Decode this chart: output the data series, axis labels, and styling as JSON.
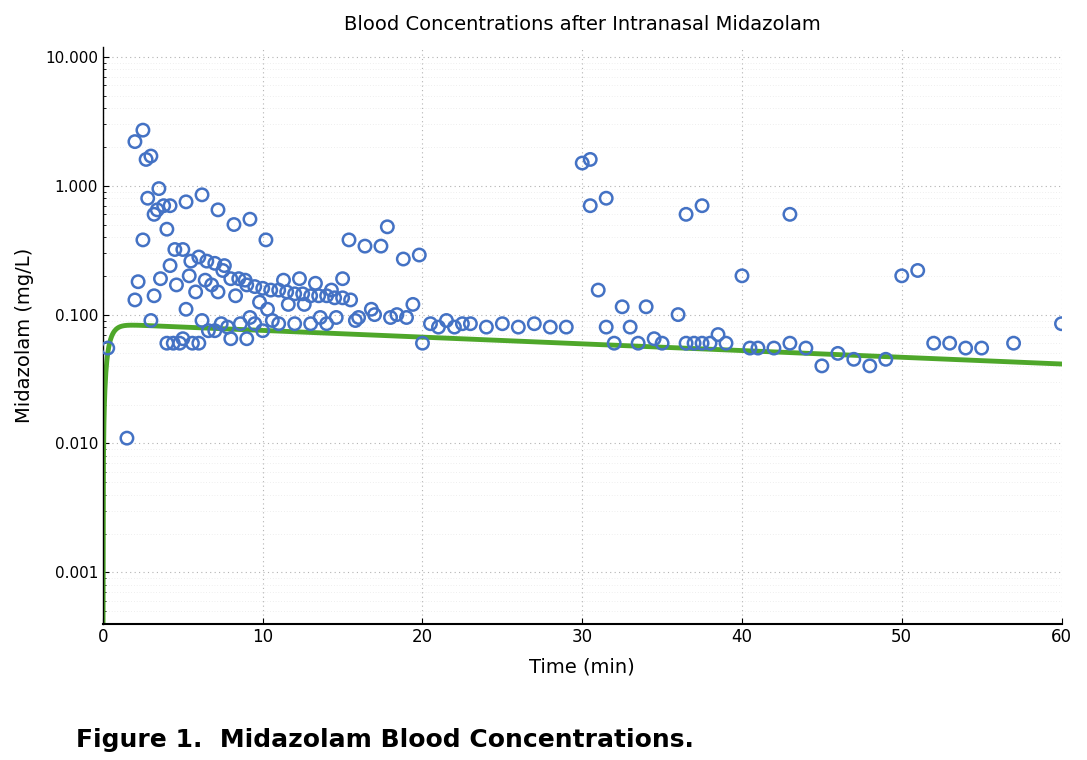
{
  "title": "Blood Concentrations after Intranasal Midazolam",
  "xlabel": "Time (min)",
  "ylabel": "Midazolam (mg/L)",
  "figure_caption": "Figure 1.  Midazolam Blood Concentrations.",
  "xlim": [
    0,
    60
  ],
  "ylim_log": [
    0.0004,
    12
  ],
  "yticks": [
    0.001,
    0.01,
    0.1,
    1.0,
    10.0
  ],
  "ytick_labels": [
    "0.001",
    "0.010",
    "0.100",
    "1.000",
    "10.000"
  ],
  "xticks": [
    0,
    10,
    20,
    30,
    40,
    50,
    60
  ],
  "scatter_color": "#4472C4",
  "scatter_facecolor": "none",
  "scatter_size": 80,
  "scatter_linewidth": 1.8,
  "line_color": "#4EA72A",
  "line_width": 3.5,
  "background_color": "#FFFFFF",
  "pk_A": 0.085,
  "pk_ka": 3.0,
  "pk_ke": 0.012,
  "scatter_x": [
    0.3,
    1.5,
    2.0,
    2.2,
    2.5,
    2.7,
    3.0,
    3.2,
    3.4,
    3.6,
    3.8,
    4.0,
    4.2,
    4.4,
    4.6,
    4.8,
    5.0,
    5.2,
    5.4,
    5.6,
    5.8,
    6.0,
    6.2,
    6.4,
    6.6,
    6.8,
    7.0,
    7.2,
    7.4,
    7.6,
    7.8,
    8.0,
    8.3,
    8.6,
    8.9,
    9.0,
    9.2,
    9.5,
    9.8,
    10.0,
    10.3,
    10.6,
    11.0,
    11.3,
    11.6,
    12.0,
    12.3,
    12.6,
    13.0,
    13.3,
    13.6,
    14.0,
    14.3,
    14.6,
    15.0,
    15.4,
    15.8,
    16.0,
    16.4,
    16.8,
    17.0,
    17.4,
    17.8,
    18.0,
    18.4,
    18.8,
    19.0,
    19.4,
    19.8,
    20.0,
    20.5,
    21.0,
    21.5,
    22.0,
    22.5,
    23.0,
    24.0,
    25.0,
    26.0,
    27.0,
    28.0,
    29.0,
    30.0,
    30.5,
    31.0,
    31.5,
    32.0,
    32.5,
    33.0,
    33.5,
    34.0,
    34.5,
    35.0,
    36.0,
    36.5,
    37.0,
    37.5,
    38.0,
    38.5,
    39.0,
    40.0,
    40.5,
    41.0,
    42.0,
    43.0,
    44.0,
    45.0,
    46.0,
    47.0,
    48.0,
    49.0,
    50.0,
    51.0,
    52.0,
    53.0,
    54.0,
    55.0,
    57.0,
    60.0,
    2.0,
    2.5,
    3.0,
    3.5,
    4.0,
    4.5,
    5.0,
    5.5,
    6.0,
    6.5,
    7.0,
    7.5,
    8.0,
    8.5,
    9.0,
    9.5,
    10.0,
    10.5,
    11.0,
    11.5,
    12.0,
    12.5,
    13.0,
    13.5,
    14.0,
    14.5,
    15.0,
    15.5,
    2.8,
    3.2,
    4.2,
    5.2,
    6.2,
    7.2,
    8.2,
    9.2,
    10.2,
    30.5,
    31.5,
    36.5,
    37.5,
    43.0
  ],
  "scatter_y": [
    0.055,
    0.011,
    0.13,
    0.18,
    0.38,
    1.6,
    0.09,
    0.14,
    0.65,
    0.19,
    0.7,
    0.06,
    0.24,
    0.06,
    0.17,
    0.06,
    0.065,
    0.11,
    0.2,
    0.06,
    0.15,
    0.06,
    0.09,
    0.185,
    0.075,
    0.17,
    0.075,
    0.15,
    0.085,
    0.24,
    0.08,
    0.065,
    0.14,
    0.085,
    0.185,
    0.065,
    0.095,
    0.085,
    0.125,
    0.075,
    0.11,
    0.09,
    0.085,
    0.185,
    0.12,
    0.085,
    0.19,
    0.12,
    0.085,
    0.175,
    0.095,
    0.085,
    0.155,
    0.095,
    0.19,
    0.38,
    0.09,
    0.095,
    0.34,
    0.11,
    0.1,
    0.34,
    0.48,
    0.095,
    0.1,
    0.27,
    0.095,
    0.12,
    0.29,
    0.06,
    0.085,
    0.08,
    0.09,
    0.08,
    0.085,
    0.085,
    0.08,
    0.085,
    0.08,
    0.085,
    0.08,
    0.08,
    1.5,
    1.6,
    0.155,
    0.08,
    0.06,
    0.115,
    0.08,
    0.06,
    0.115,
    0.065,
    0.06,
    0.1,
    0.06,
    0.06,
    0.06,
    0.06,
    0.07,
    0.06,
    0.2,
    0.055,
    0.055,
    0.055,
    0.06,
    0.055,
    0.04,
    0.05,
    0.045,
    0.04,
    0.045,
    0.2,
    0.22,
    0.06,
    0.06,
    0.055,
    0.055,
    0.06,
    0.085,
    2.2,
    2.7,
    1.7,
    0.95,
    0.46,
    0.32,
    0.32,
    0.26,
    0.28,
    0.26,
    0.25,
    0.22,
    0.19,
    0.19,
    0.17,
    0.165,
    0.16,
    0.155,
    0.155,
    0.15,
    0.145,
    0.145,
    0.14,
    0.14,
    0.14,
    0.135,
    0.135,
    0.13,
    0.8,
    0.6,
    0.7,
    0.75,
    0.85,
    0.65,
    0.5,
    0.55,
    0.38,
    0.7,
    0.8,
    0.6,
    0.7,
    0.6
  ]
}
